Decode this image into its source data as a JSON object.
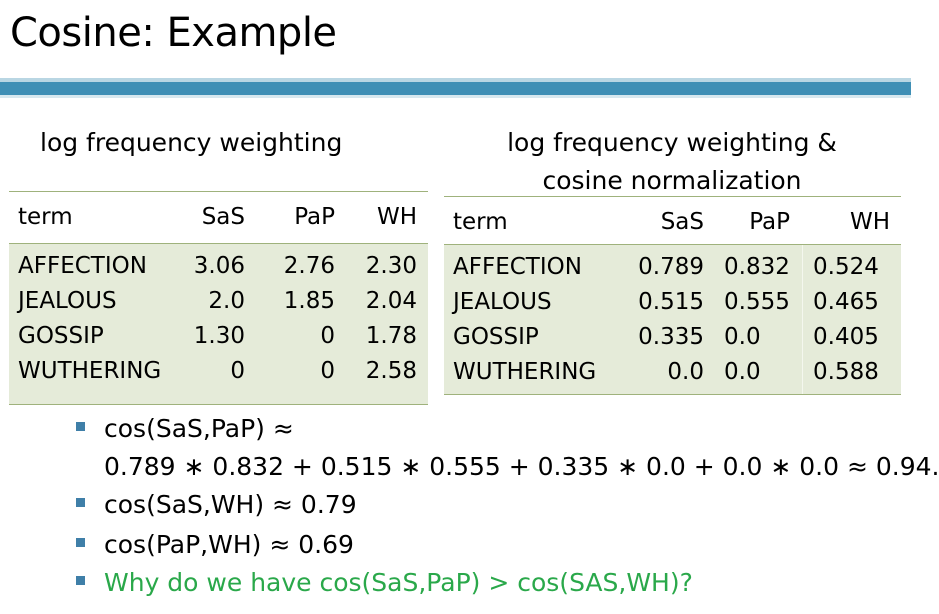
{
  "title": "Cosine: Example",
  "left_heading": "log frequency weighting",
  "right_heading_line1": "log frequency weighting &",
  "right_heading_line2": "cosine normalization",
  "table1": {
    "headers": [
      "term",
      "SaS",
      "PaP",
      "WH"
    ],
    "rows": [
      [
        "AFFECTION",
        "3.06",
        "2.76",
        "2.30"
      ],
      [
        "JEALOUS",
        "2.0",
        "1.85",
        "2.04"
      ],
      [
        "GOSSIP",
        "1.30",
        "0",
        "1.78"
      ],
      [
        "WUTHERING",
        "0",
        "0",
        "2.58"
      ]
    ]
  },
  "table2": {
    "headers": [
      "term",
      "SaS",
      "PaP",
      "WH"
    ],
    "rows": [
      [
        "AFFECTION",
        "0.789",
        "0.832",
        "0.524"
      ],
      [
        "JEALOUS",
        "0.515",
        "0.555",
        "0.465"
      ],
      [
        "GOSSIP",
        "0.335",
        "0.0",
        "0.405"
      ],
      [
        "WUTHERING",
        "0.0",
        "0.0",
        "0.588"
      ]
    ]
  },
  "bullets": [
    {
      "line1": "cos(SaS,PaP) ≈",
      "line2": "0.789 ∗ 0.832 + 0.515 ∗ 0.555 + 0.335 ∗ 0.0 + 0.0 ∗ 0.0 ≈ 0.94."
    },
    {
      "line1": "cos(SaS,WH) ≈ 0.79"
    },
    {
      "line1": "cos(PaP,WH) ≈ 0.69"
    },
    {
      "line1": "Why do we have cos(SaS,PaP) > cos(SAS,WH)?"
    }
  ],
  "colors": {
    "accent_bar": "#3f8fb5",
    "table_fill": "#e5ebd9",
    "question_text": "#2aa84a",
    "bullet": "#3f7fa8"
  }
}
